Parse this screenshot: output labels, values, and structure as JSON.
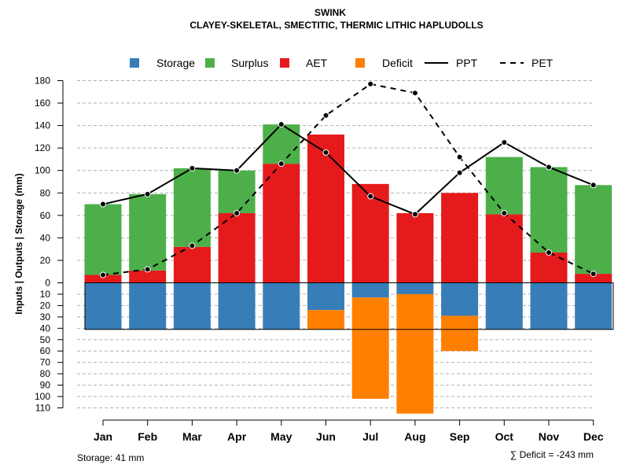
{
  "chart_data": {
    "type": "bar",
    "title": "SWINK",
    "subtitle": "CLAYEY-SKELETAL, SMECTITIC, THERMIC LITHIC HAPLUDOLLS",
    "ylabel": "Inputs | Outputs | Storage     (mm)",
    "categories": [
      "Jan",
      "Feb",
      "Mar",
      "Apr",
      "May",
      "Jun",
      "Jul",
      "Aug",
      "Sep",
      "Oct",
      "Nov",
      "Dec"
    ],
    "ylim_upper": [
      0,
      180
    ],
    "ylim_lower": [
      0,
      110
    ],
    "upper_ticks": [
      "0",
      "20",
      "40",
      "60",
      "80",
      "100",
      "120",
      "140",
      "160",
      "180"
    ],
    "lower_ticks": [
      "10",
      "20",
      "30",
      "40",
      "50",
      "60",
      "70",
      "80",
      "90",
      "100",
      "110"
    ],
    "series": [
      {
        "name": "Storage",
        "color": "#377EB8",
        "values": [
          41,
          41,
          41,
          41,
          41,
          24,
          13,
          10,
          29,
          41,
          41,
          41
        ]
      },
      {
        "name": "Surplus",
        "color": "#4DAF4A",
        "values": [
          63,
          68,
          70,
          38,
          35,
          0,
          0,
          0,
          0,
          51,
          76,
          79
        ]
      },
      {
        "name": "AET",
        "color": "#E41A1C",
        "values": [
          7,
          11,
          32,
          62,
          106,
          132,
          88,
          62,
          80,
          61,
          27,
          8
        ]
      },
      {
        "name": "Deficit",
        "color": "#FF7F00",
        "values": [
          0,
          0,
          0,
          0,
          0,
          17,
          89,
          105,
          31,
          0,
          0,
          0
        ]
      },
      {
        "name": "PPT",
        "color": "#000000",
        "style": "solid",
        "values": [
          70,
          79,
          102,
          100,
          141,
          116,
          77,
          61,
          98,
          125,
          103,
          87
        ]
      },
      {
        "name": "PET",
        "color": "#000000",
        "style": "dashed",
        "values": [
          7,
          12,
          33,
          62,
          106,
          149,
          177,
          169,
          112,
          62,
          27,
          8
        ]
      }
    ],
    "legend": {
      "position": "top",
      "labels": [
        "Storage",
        "Surplus",
        "AET",
        "Deficit",
        "PPT",
        "PET"
      ]
    },
    "storage_note": "Storage: 41 mm",
    "deficit_note": "∑ Deficit = -243 mm",
    "grid": true
  }
}
